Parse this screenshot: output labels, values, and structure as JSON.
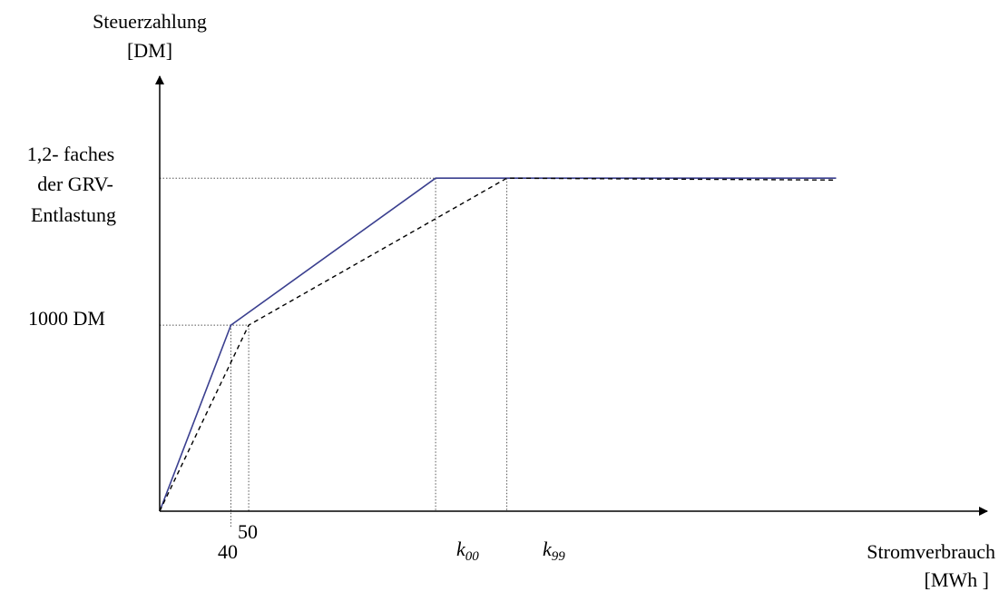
{
  "colors": {
    "series_solid": "#3a3f8f",
    "series_dashed": "#000000",
    "axis": "#000000",
    "guide": "#555555"
  },
  "chart_data": {
    "type": "line",
    "ylabel_line1": "Steuerzahlung",
    "ylabel_line2": "[DM]",
    "xlabel_line1": "Stromverbrauch",
    "xlabel_line2": "[MWh ]",
    "y_ticks": {
      "cap": [
        "1,2- faches",
        "der GRV-",
        "Entlastung"
      ],
      "mid": "1000 DM"
    },
    "x_ticks": {
      "a": "40",
      "b": "50",
      "k00": {
        "base": "k",
        "sub": "00"
      },
      "k99": {
        "base": "k",
        "sub": "99"
      }
    },
    "x_positions": {
      "origin": 0,
      "a": 40,
      "b": 50,
      "k00": 155,
      "k99": 195,
      "end": 380
    },
    "y_positions": {
      "origin": 0,
      "mid": 1000,
      "cap": 1790
    },
    "xlim": [
      0,
      420
    ],
    "ylim": [
      0,
      2250
    ],
    "series": [
      {
        "style": "solid",
        "points": [
          [
            0,
            0
          ],
          [
            40,
            1000
          ],
          [
            155,
            1790
          ],
          [
            380,
            1790
          ]
        ]
      },
      {
        "style": "dashed",
        "points": [
          [
            0,
            0
          ],
          [
            50,
            1000
          ],
          [
            195,
            1790
          ],
          [
            380,
            1780
          ]
        ]
      }
    ]
  }
}
